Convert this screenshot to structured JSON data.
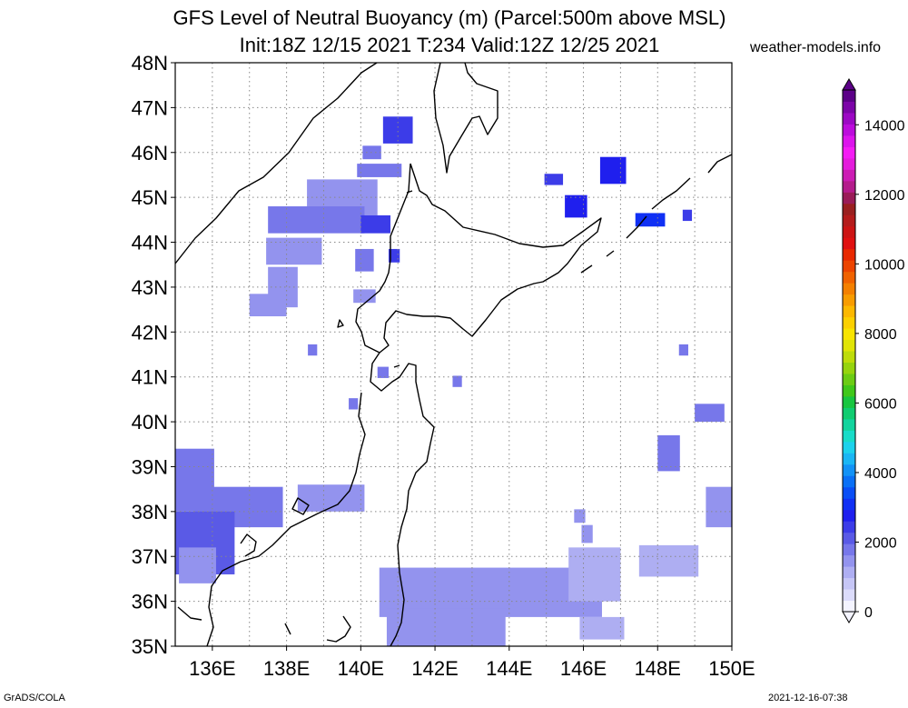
{
  "title_line1": "GFS Level of Neutral Buoyancy (m) (Parcel:500m above MSL)",
  "title_line2": "Init:18Z 12/15 2021 T:234 Valid:12Z 12/25 2021",
  "site": "weather-models.info",
  "footer_left": "GrADS/COLA",
  "footer_right": "2021-12-16-07:38",
  "map": {
    "lat_range": [
      35,
      48
    ],
    "lon_range": [
      135,
      150
    ],
    "lat_labels": [
      "35N",
      "36N",
      "37N",
      "38N",
      "39N",
      "40N",
      "41N",
      "42N",
      "43N",
      "44N",
      "45N",
      "46N",
      "47N",
      "48N"
    ],
    "lon_labels": [
      "136E",
      "138E",
      "140E",
      "142E",
      "144E",
      "146E",
      "148E",
      "150E"
    ],
    "grid": "dotted"
  },
  "colorbar": {
    "min": 0,
    "max": 15000,
    "labels": [
      "0",
      "2000",
      "4000",
      "6000",
      "8000",
      "10000",
      "12000",
      "14000"
    ],
    "label_values": [
      0,
      2000,
      4000,
      6000,
      8000,
      10000,
      12000,
      14000
    ],
    "colors": [
      "#f4f4ff",
      "#dcdcfb",
      "#c6c6f6",
      "#aeaef2",
      "#9393ee",
      "#7777ea",
      "#5a5ae6",
      "#3c3ce8",
      "#1f1fee",
      "#1030f4",
      "#0a4ef6",
      "#0a70f6",
      "#1292f6",
      "#1ab6f4",
      "#1cd2ec",
      "#18dcc8",
      "#12d49e",
      "#10cc70",
      "#18c640",
      "#40c81a",
      "#6ccc14",
      "#96d40e",
      "#bedc0a",
      "#e0e406",
      "#f8e400",
      "#fcd000",
      "#fcb800",
      "#f89c00",
      "#f48000",
      "#f06200",
      "#ec4400",
      "#e82800",
      "#e01010",
      "#cc1414",
      "#b41c1c",
      "#9a2020",
      "#9a1c58",
      "#b41c8c",
      "#cc1cb4",
      "#e41cdc",
      "#f41cf4",
      "#dc14ec",
      "#bc0cdc",
      "#9c08c4",
      "#7c04a8",
      "#5c0088"
    ]
  },
  "field_cells": [
    {
      "lon": 141.0,
      "lat": 46.5,
      "w": 0.8,
      "h": 0.6,
      "level": 2400
    },
    {
      "lon": 140.3,
      "lat": 46.0,
      "w": 0.5,
      "h": 0.3,
      "level": 1800
    },
    {
      "lon": 140.5,
      "lat": 45.6,
      "w": 1.2,
      "h": 0.3,
      "level": 1900
    },
    {
      "lon": 139.5,
      "lat": 45.0,
      "w": 1.9,
      "h": 0.8,
      "level": 1600
    },
    {
      "lon": 138.8,
      "lat": 44.5,
      "w": 2.6,
      "h": 0.6,
      "level": 1700
    },
    {
      "lon": 140.4,
      "lat": 44.4,
      "w": 0.8,
      "h": 0.4,
      "level": 2300
    },
    {
      "lon": 138.2,
      "lat": 43.8,
      "w": 1.5,
      "h": 0.6,
      "level": 1600
    },
    {
      "lon": 137.9,
      "lat": 43.0,
      "w": 0.8,
      "h": 0.9,
      "level": 1500
    },
    {
      "lon": 137.5,
      "lat": 42.6,
      "w": 1.0,
      "h": 0.5,
      "level": 1500
    },
    {
      "lon": 140.1,
      "lat": 42.8,
      "w": 0.6,
      "h": 0.3,
      "level": 1600
    },
    {
      "lon": 140.1,
      "lat": 43.6,
      "w": 0.5,
      "h": 0.5,
      "level": 1700
    },
    {
      "lon": 140.9,
      "lat": 43.7,
      "w": 0.3,
      "h": 0.3,
      "level": 2600
    },
    {
      "lon": 138.7,
      "lat": 41.6,
      "w": 0.25,
      "h": 0.25,
      "level": 1700
    },
    {
      "lon": 140.6,
      "lat": 41.1,
      "w": 0.3,
      "h": 0.25,
      "level": 1700
    },
    {
      "lon": 142.6,
      "lat": 40.9,
      "w": 0.25,
      "h": 0.25,
      "level": 1700
    },
    {
      "lon": 139.8,
      "lat": 40.4,
      "w": 0.25,
      "h": 0.25,
      "level": 1700
    },
    {
      "lon": 145.2,
      "lat": 45.4,
      "w": 0.5,
      "h": 0.25,
      "level": 2300
    },
    {
      "lon": 145.8,
      "lat": 44.8,
      "w": 0.6,
      "h": 0.5,
      "level": 2900
    },
    {
      "lon": 146.8,
      "lat": 45.6,
      "w": 0.7,
      "h": 0.6,
      "level": 2900
    },
    {
      "lon": 147.8,
      "lat": 44.5,
      "w": 0.8,
      "h": 0.3,
      "level": 3000
    },
    {
      "lon": 148.8,
      "lat": 44.6,
      "w": 0.25,
      "h": 0.25,
      "level": 2600
    },
    {
      "lon": 148.7,
      "lat": 41.6,
      "w": 0.25,
      "h": 0.25,
      "level": 1800
    },
    {
      "lon": 149.4,
      "lat": 40.2,
      "w": 0.8,
      "h": 0.4,
      "level": 1700
    },
    {
      "lon": 148.3,
      "lat": 39.3,
      "w": 0.6,
      "h": 0.8,
      "level": 1700
    },
    {
      "lon": 135.5,
      "lat": 38.7,
      "w": 1.1,
      "h": 1.4,
      "level": 1700
    },
    {
      "lon": 136.7,
      "lat": 38.1,
      "w": 2.4,
      "h": 0.9,
      "level": 1700
    },
    {
      "lon": 135.8,
      "lat": 37.3,
      "w": 1.6,
      "h": 1.4,
      "level": 2200
    },
    {
      "lon": 135.6,
      "lat": 36.8,
      "w": 1.0,
      "h": 0.8,
      "level": 1600
    },
    {
      "lon": 139.2,
      "lat": 38.3,
      "w": 1.8,
      "h": 0.6,
      "level": 1600
    },
    {
      "lon": 143.5,
      "lat": 36.2,
      "w": 6.0,
      "h": 1.1,
      "level": 1500
    },
    {
      "lon": 142.3,
      "lat": 35.4,
      "w": 3.2,
      "h": 0.9,
      "level": 1600
    },
    {
      "lon": 146.3,
      "lat": 36.6,
      "w": 1.4,
      "h": 1.2,
      "level": 1200
    },
    {
      "lon": 148.3,
      "lat": 36.9,
      "w": 1.6,
      "h": 0.7,
      "level": 1000
    },
    {
      "lon": 149.7,
      "lat": 38.1,
      "w": 0.8,
      "h": 0.9,
      "level": 1500
    },
    {
      "lon": 146.5,
      "lat": 35.4,
      "w": 1.2,
      "h": 0.5,
      "level": 1100
    },
    {
      "lon": 146.1,
      "lat": 37.5,
      "w": 0.3,
      "h": 0.4,
      "level": 1500
    },
    {
      "lon": 145.9,
      "lat": 37.9,
      "w": 0.3,
      "h": 0.3,
      "level": 1600
    }
  ]
}
